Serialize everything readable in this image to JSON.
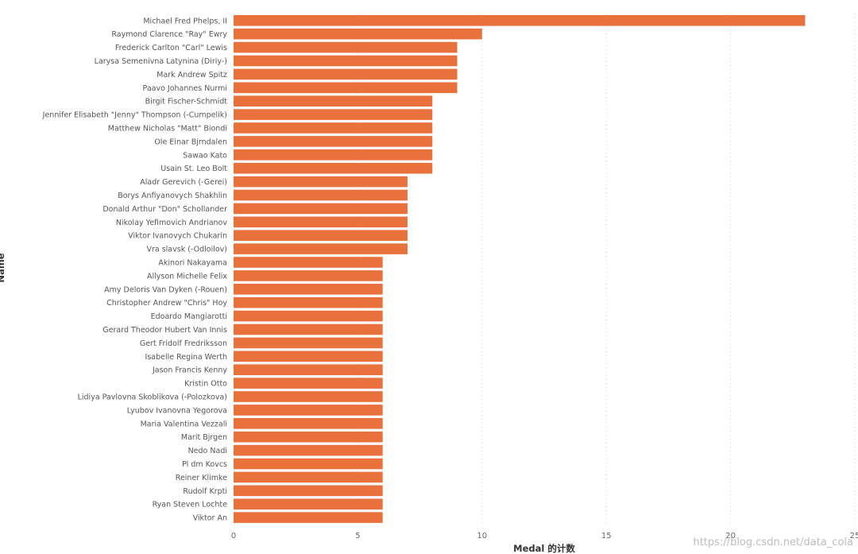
{
  "chart_data": {
    "type": "bar",
    "orientation": "horizontal",
    "xlabel": "Medal 的计数",
    "ylabel": "Name",
    "xlim": [
      0,
      25
    ],
    "xticks": [
      0,
      5,
      10,
      15,
      20,
      25
    ],
    "grid": "vertical dotted",
    "bar_color": "#E8713C",
    "categories": [
      "Michael Fred Phelps, II",
      "Raymond Clarence \"Ray\" Ewry",
      "Frederick Carlton \"Carl\" Lewis",
      "Larysa Semenivna Latynina (Diriy-)",
      "Mark Andrew Spitz",
      "Paavo Johannes Nurmi",
      "Birgit Fischer-Schmidt",
      "Jennifer Elisabeth \"Jenny\" Thompson (-Cumpelik)",
      "Matthew Nicholas \"Matt\" Biondi",
      "Ole Einar Bjrndalen",
      "Sawao Kato",
      "Usain St. Leo Bolt",
      "Aladr Gerevich (-Gerei)",
      "Borys Anfiyanovych Shakhlin",
      "Donald Arthur \"Don\" Schollander",
      "Nikolay Yefimovich Andrianov",
      "Viktor Ivanovych Chukarin",
      "Vra slavsk (-Odloilov)",
      "Akinori Nakayama",
      "Allyson Michelle Felix",
      "Amy Deloris Van Dyken (-Rouen)",
      "Christopher Andrew \"Chris\" Hoy",
      "Edoardo Mangiarotti",
      "Gerard Theodor Hubert Van Innis",
      "Gert Fridolf Fredriksson",
      "Isabelle Regina Werth",
      "Jason Francis Kenny",
      "Kristin Otto",
      "Lidiya Pavlovna Skoblikova (-Polozkova)",
      "Lyubov Ivanovna Yegorova",
      "Maria Valentina Vezzali",
      "Marit Bjrgen",
      "Nedo Nadi",
      "Pl dm Kovcs",
      "Reiner Klimke",
      "Rudolf Krpti",
      "Ryan Steven Lochte",
      "Viktor An"
    ],
    "values": [
      23,
      10,
      9,
      9,
      9,
      9,
      8,
      8,
      8,
      8,
      8,
      8,
      7,
      7,
      7,
      7,
      7,
      7,
      6,
      6,
      6,
      6,
      6,
      6,
      6,
      6,
      6,
      6,
      6,
      6,
      6,
      6,
      6,
      6,
      6,
      6,
      6,
      6
    ]
  },
  "watermark": "https://blog.csdn.net/data_cola"
}
